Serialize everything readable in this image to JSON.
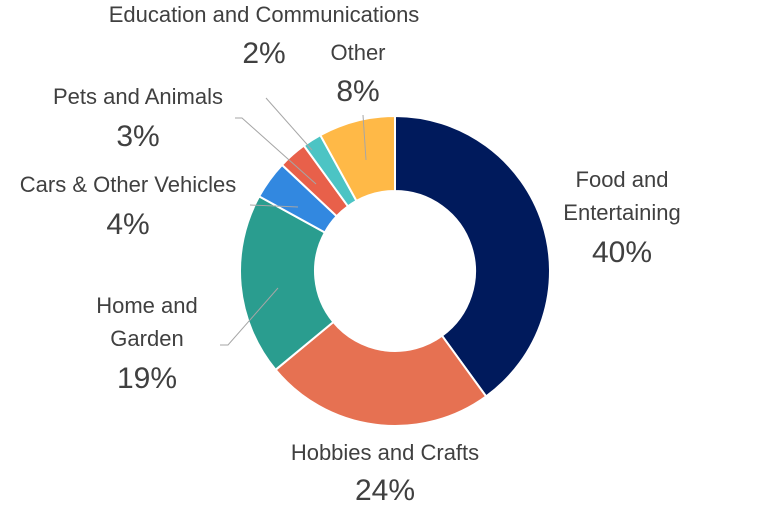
{
  "chart_data": {
    "type": "pie",
    "donut": true,
    "title": "",
    "categories": [
      "Food and Entertaining",
      "Hobbies and Crafts",
      "Home and Garden",
      "Cars & Other Vehicles",
      "Pets and Animals",
      "Education and Communications",
      "Other"
    ],
    "values": [
      40,
      24,
      19,
      4,
      3,
      2,
      8
    ],
    "value_labels": [
      "40%",
      "24%",
      "19%",
      "4%",
      "3%",
      "2%",
      "8%"
    ],
    "colors": [
      "#001a5c",
      "#e67152",
      "#2a9d8f",
      "#3288e0",
      "#e8604a",
      "#4cc4c4",
      "#ffb947"
    ],
    "legend": "none"
  }
}
